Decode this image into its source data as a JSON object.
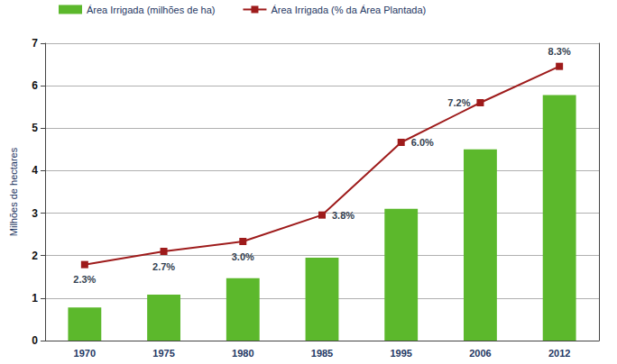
{
  "chart_data": {
    "type": "bar",
    "categories": [
      "1970",
      "1975",
      "1980",
      "1985",
      "1995",
      "2006",
      "2012"
    ],
    "series": [
      {
        "name": "Área Irrigada (milhões de ha)",
        "type": "bar",
        "color": "#5cb82c",
        "values": [
          0.78,
          1.08,
          1.47,
          1.95,
          3.1,
          4.5,
          5.78
        ]
      },
      {
        "name": "Área Irrigada (% da Área Plantada)",
        "type": "line",
        "color": "#9e1b1b",
        "marker": "square",
        "axis": "y2",
        "data_labels": true,
        "values": [
          2.3,
          2.7,
          3.0,
          3.8,
          6.0,
          7.2,
          8.3
        ],
        "value_labels": [
          "2.3%",
          "2.7%",
          "3.0%",
          "3.8%",
          "6.0%",
          "7.2%",
          "8.3%"
        ]
      }
    ],
    "ylabel": "Milhões de hectares",
    "ylim": [
      0,
      7
    ],
    "yticks": [
      0,
      1,
      2,
      3,
      4,
      5,
      6,
      7
    ],
    "y2lim": [
      0,
      9
    ],
    "grid": true,
    "legend": "top-left"
  }
}
